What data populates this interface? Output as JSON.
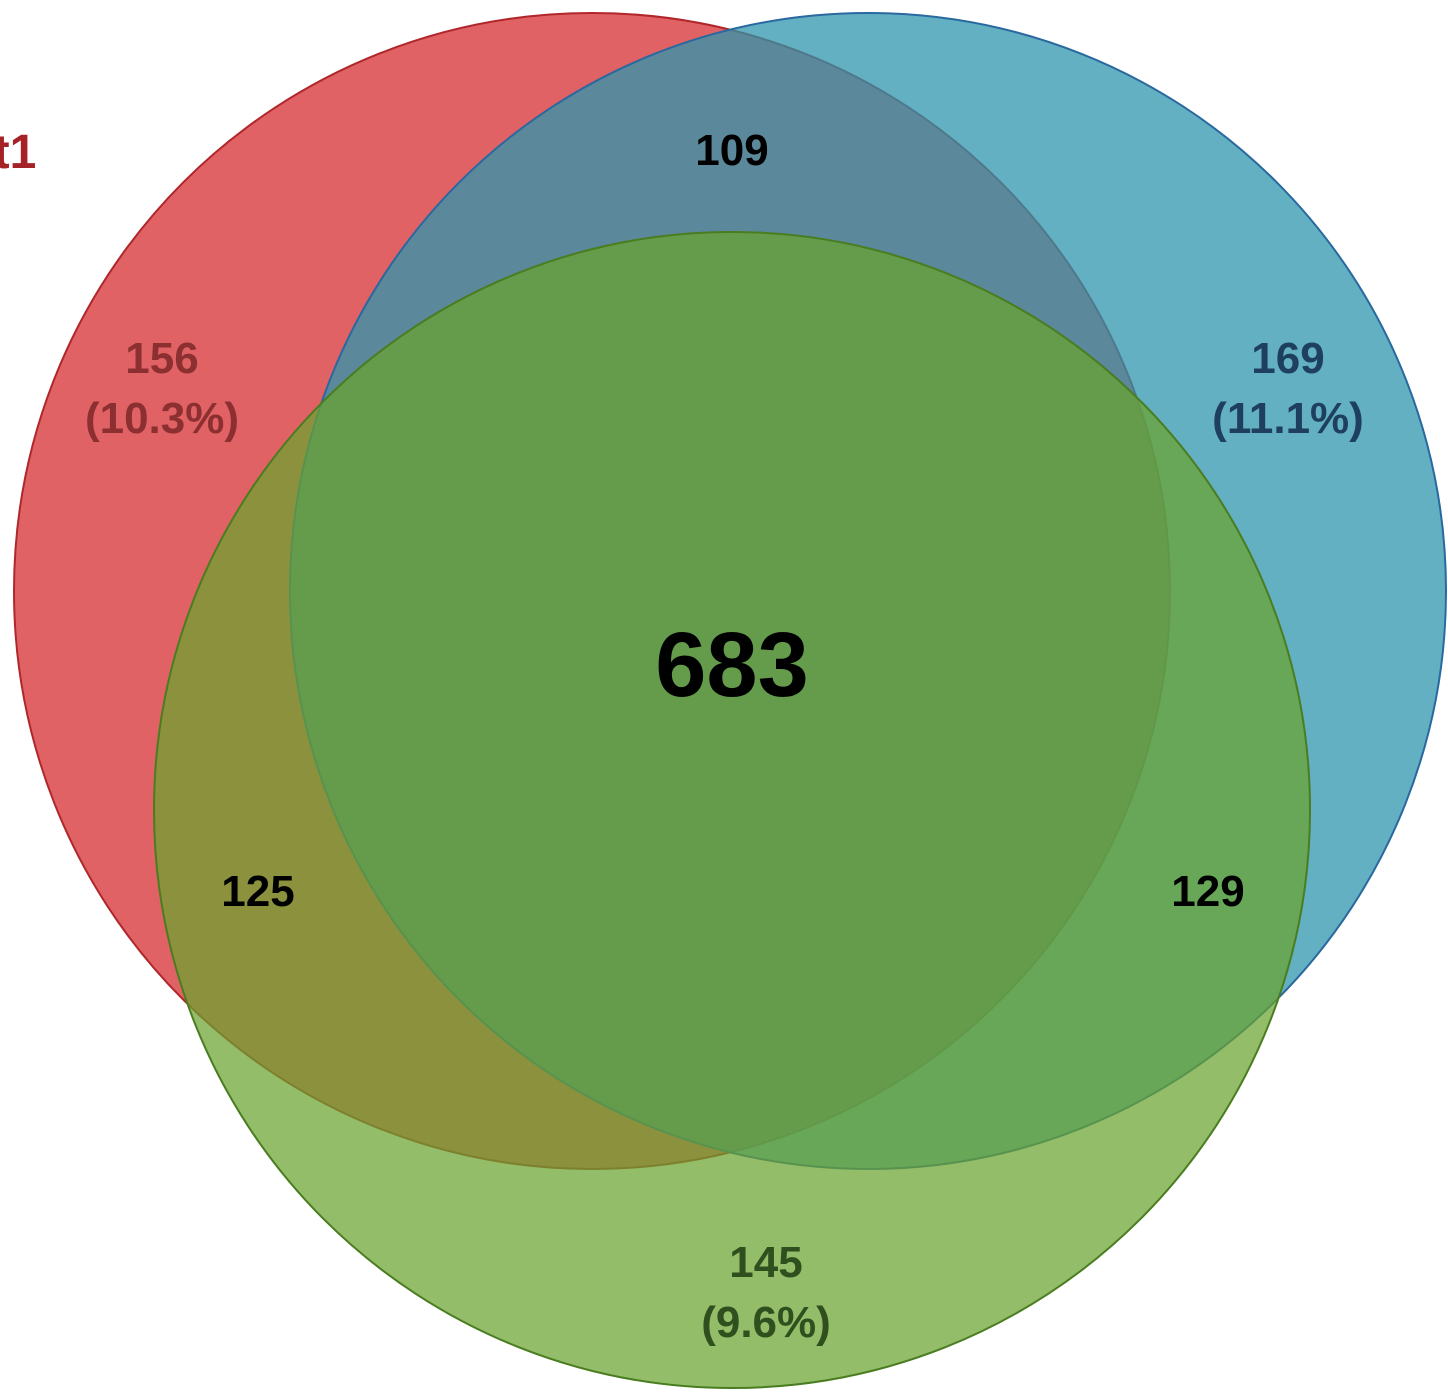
{
  "colors": {
    "set1_fill": "#d9363a",
    "set2_fill": "#2e96ad",
    "set3_fill": "#6aa42e",
    "set1_stroke": "#b0272b",
    "set2_stroke": "#2a68a0",
    "set3_stroke": "#4a7d20",
    "set1_text": "#8b2f30",
    "set2_text": "#1e3f5e",
    "set3_text": "#2f4f1f",
    "title_text": "#a52226",
    "overlap_text": "#000000"
  },
  "set_label": "t1",
  "regions": {
    "only_set1": {
      "count": "156",
      "percent": "(10.3%)"
    },
    "only_set2": {
      "count": "169",
      "percent": "(11.1%)"
    },
    "only_set3": {
      "count": "145",
      "percent": "(9.6%)"
    },
    "set1_set2": {
      "count": "109"
    },
    "set1_set3": {
      "count": "125"
    },
    "set2_set3": {
      "count": "129"
    },
    "all_three": {
      "count": "683"
    }
  }
}
